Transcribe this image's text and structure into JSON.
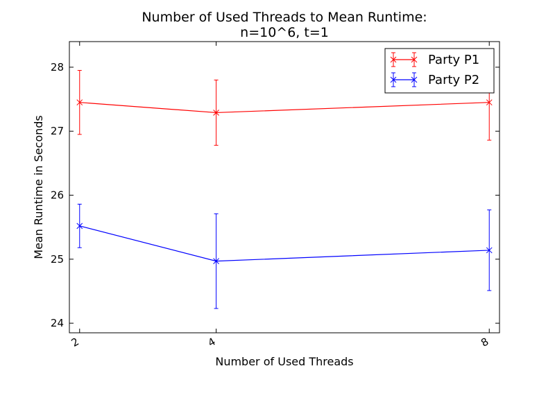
{
  "chart_data": {
    "type": "line",
    "title_line1": "Number of Used Threads to Mean Runtime:",
    "title_line2": "n=10^6, t=1",
    "xlabel": "Number of Used Threads",
    "ylabel": "Mean Runtime in Seconds",
    "x": [
      2,
      4,
      8
    ],
    "x_tick_labels": [
      "2",
      "4",
      "8"
    ],
    "xlim": [
      1.85,
      8.15
    ],
    "ylim": [
      23.85,
      28.4
    ],
    "y_ticks": [
      24,
      25,
      26,
      27,
      28
    ],
    "y_tick_labels": [
      "24",
      "25",
      "26",
      "27",
      "28"
    ],
    "grid": false,
    "legend_position": "top-right",
    "series": [
      {
        "name": "Party P1",
        "color": "#ff0000",
        "marker": "x",
        "values": [
          27.45,
          27.29,
          27.45
        ],
        "err_low": [
          26.95,
          26.78,
          26.86
        ],
        "err_high": [
          27.95,
          27.8,
          28.05
        ]
      },
      {
        "name": "Party P2",
        "color": "#0000ff",
        "marker": "x",
        "values": [
          25.52,
          24.97,
          25.14
        ],
        "err_low": [
          25.18,
          24.23,
          24.51
        ],
        "err_high": [
          25.86,
          25.71,
          25.77
        ]
      }
    ]
  }
}
